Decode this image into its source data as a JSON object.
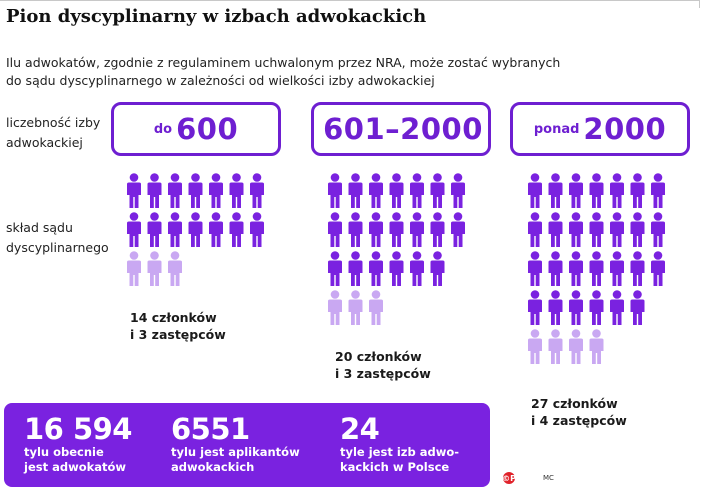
{
  "title": "Pion dyscyplinarny w izbach adwokackich",
  "subtitle_line1": "Ilu adwokatów, zgodnie z regulaminem uchwalonym przez NRA, może zostać wybranych",
  "subtitle_line2": "do sądu dyscyplinarnego w zależności od wielkości izby adwokackiej",
  "row_labels": {
    "size_line1": "liczebność izby",
    "size_line2": "adwokackiej",
    "court_line1": "skład sądu",
    "court_line2": "dyscyplinarnego"
  },
  "colors": {
    "accent": "#6e1fd1",
    "member": "#7a22e0",
    "deputy": "#c9a8f2",
    "panel": "#7a22e0"
  },
  "chart_data": {
    "type": "pictogram",
    "categories": [
      "do 600",
      "601–2000",
      "ponad 2000"
    ],
    "series": [
      {
        "name": "członków",
        "values": [
          14,
          20,
          27
        ]
      },
      {
        "name": "zastępców",
        "values": [
          3,
          3,
          4
        ]
      }
    ]
  },
  "groups": [
    {
      "prefix": "do",
      "number": "600",
      "caption_line1": "14 członków",
      "caption_line2": "i 3 zastępców"
    },
    {
      "prefix": "",
      "number": "601–2000",
      "caption_line1": "20 członków",
      "caption_line2": "i 3 zastępców"
    },
    {
      "prefix": "ponad",
      "number": "2000",
      "caption_line1": "27 członków",
      "caption_line2": "i 4 zastępców"
    }
  ],
  "stats": [
    {
      "value": "16 594",
      "line1": "tylu obecnie",
      "line2": "jest adwokatów"
    },
    {
      "value": "6551",
      "line1": "tylu jest aplikantów",
      "line2": "adwokackich"
    },
    {
      "value": "24",
      "line1": "tyle jest izb adwo-",
      "line2": "kackich w Polsce"
    }
  ],
  "logo_text": "©P",
  "author": "MC"
}
